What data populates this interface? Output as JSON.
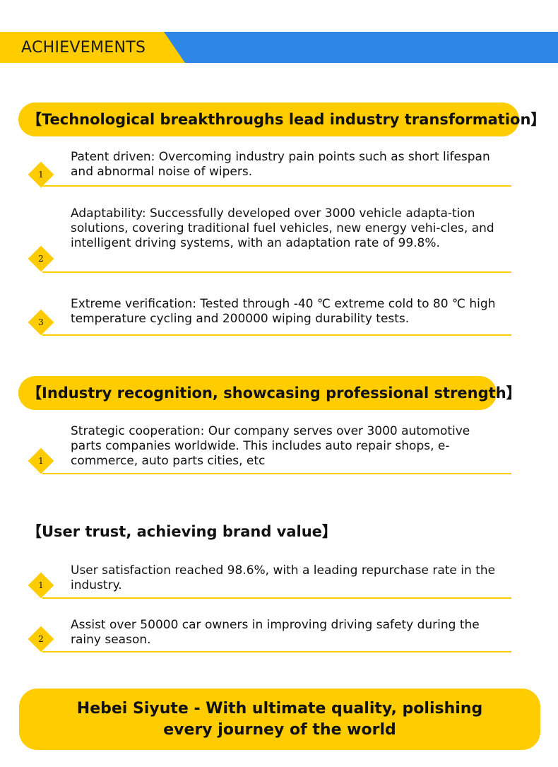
{
  "banner": {
    "title": "ACHIEVEMENTS"
  },
  "sections": [
    {
      "title": "【Technological breakthroughs lead industry transformation】",
      "items": [
        {
          "num": "1",
          "text": "Patent driven: Overcoming industry pain points such as short lifespan and abnormal noise of wipers."
        },
        {
          "num": "2",
          "text": "Adaptability: Successfully developed over 3000 vehicle adapta-tion solutions, covering traditional fuel vehicles, new energy vehi-cles, and intelligent driving systems, with an adaptation rate of 99.8%."
        },
        {
          "num": "3",
          "text": "Extreme verification: Tested through -40 ℃ extreme cold to 80 ℃ high temperature cycling and 200000 wiping durability tests."
        }
      ]
    },
    {
      "title": "【Industry recognition, showcasing professional strength】",
      "items": [
        {
          "num": "1",
          "text": "Strategic cooperation: Our company serves over 3000 automotive parts companies worldwide. This includes auto repair shops, e-commerce, auto parts cities, etc"
        }
      ]
    },
    {
      "title": "【User trust, achieving brand value】",
      "items": [
        {
          "num": "1",
          "text": "User satisfaction reached 98.6%, with a leading repurchase rate in the industry."
        },
        {
          "num": "2",
          "text": "Assist over 50000 car owners in improving driving safety during the rainy season."
        }
      ]
    }
  ],
  "slogan": "Hebei Siyute - With ultimate quality, polishing every journey of the world",
  "colors": {
    "accent": "#ffcc00",
    "banner_blue": "#2e86e8",
    "text": "#111111"
  }
}
